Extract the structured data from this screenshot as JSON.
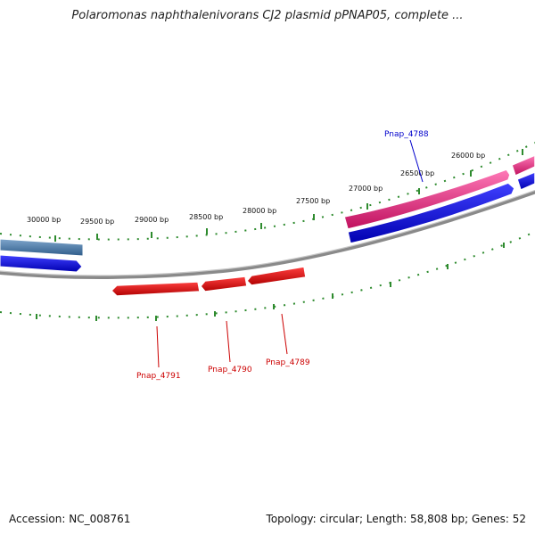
{
  "title": "Polaromonas naphthalenivorans CJ2 plasmid pPNAP05, complete ...",
  "footer": {
    "accession": "Accession: NC_008761",
    "summary": "Topology: circular; Length: 58,808 bp; Genes: 52"
  },
  "colors": {
    "backbone": "#8a8a8a",
    "tick": "#2e8b2e",
    "forward_gene": "#e8207a",
    "forward_cds": "#1010e0",
    "reverse_gene": "#e80000",
    "other_track": "#4a78a8",
    "blue_label": "#0000cc",
    "red_label": "#cc0000"
  },
  "scale_labels": [
    "30000 bp",
    "29500 bp",
    "29000 bp",
    "28500 bp",
    "28000 bp",
    "27500 bp",
    "27000 bp",
    "26500 bp",
    "26000 bp"
  ],
  "gene_labels": {
    "pnap_4788": "Pnap_4788",
    "pnap_4789": "Pnap_4789",
    "pnap_4790": "Pnap_4790",
    "pnap_4791": "Pnap_4791"
  }
}
